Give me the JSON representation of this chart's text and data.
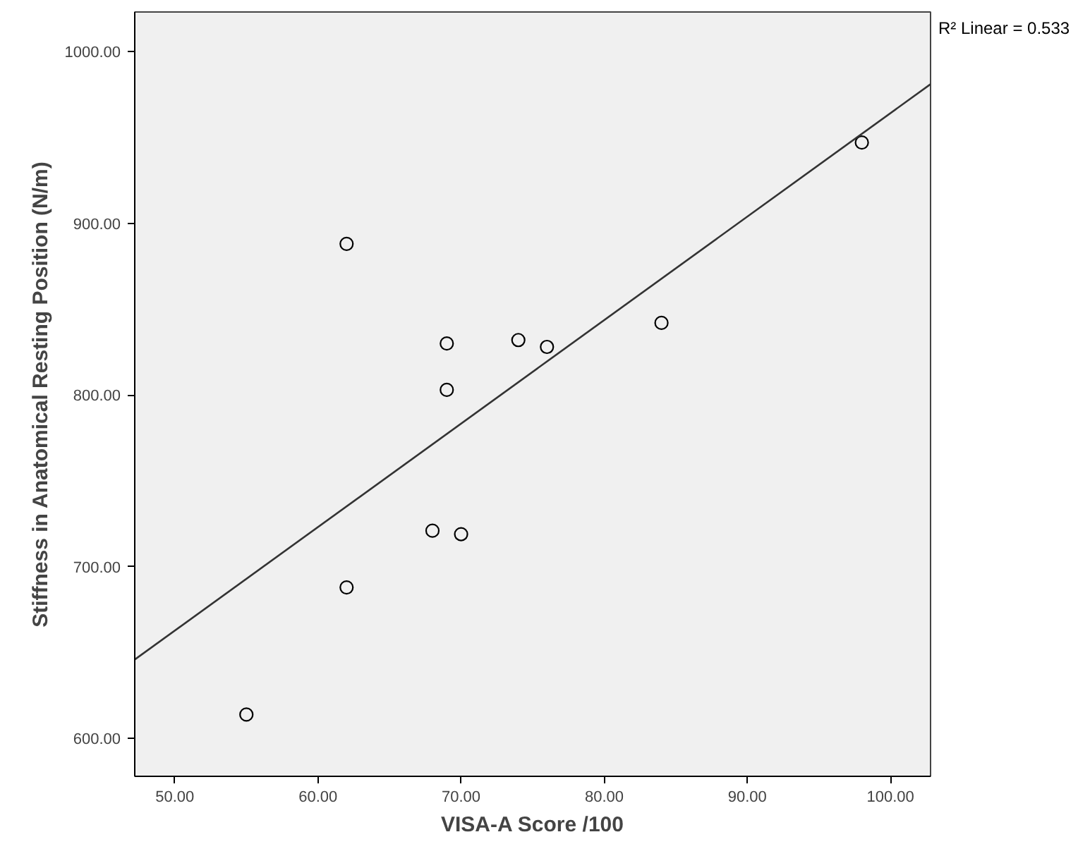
{
  "chart_data": {
    "type": "scatter",
    "xlabel": "VISA-A Score /100",
    "ylabel": "Stiffness in Anatomical Resting Position (N/m)",
    "annotations": [
      "R² Linear = 0.533"
    ],
    "grid": false,
    "xlim": [
      47.2,
      102.8
    ],
    "ylim": [
      578,
      1023
    ],
    "xticks": [
      {
        "value": 50,
        "label": "50.00"
      },
      {
        "value": 60,
        "label": "60.00"
      },
      {
        "value": 70,
        "label": "70.00"
      },
      {
        "value": 80,
        "label": "80.00"
      },
      {
        "value": 90,
        "label": "90.00"
      },
      {
        "value": 100,
        "label": "100.00"
      }
    ],
    "yticks": [
      {
        "value": 600,
        "label": "600.00"
      },
      {
        "value": 700,
        "label": "700.00"
      },
      {
        "value": 800,
        "label": "800.00"
      },
      {
        "value": 900,
        "label": "900.00"
      },
      {
        "value": 1000,
        "label": "1000.00"
      }
    ],
    "x": [
      55,
      62,
      62,
      68,
      69,
      69,
      70,
      74,
      76,
      84,
      98
    ],
    "series": [
      {
        "color": "#000000",
        "marker": "circle",
        "values": [
          614,
          688,
          888,
          721,
          803,
          830,
          719,
          832,
          828,
          842,
          947
        ]
      },
      {
        "type": "line",
        "marker": "none",
        "color": "#333333",
        "x": [
          47.2,
          102.8
        ],
        "values": [
          646,
          981
        ]
      }
    ]
  }
}
